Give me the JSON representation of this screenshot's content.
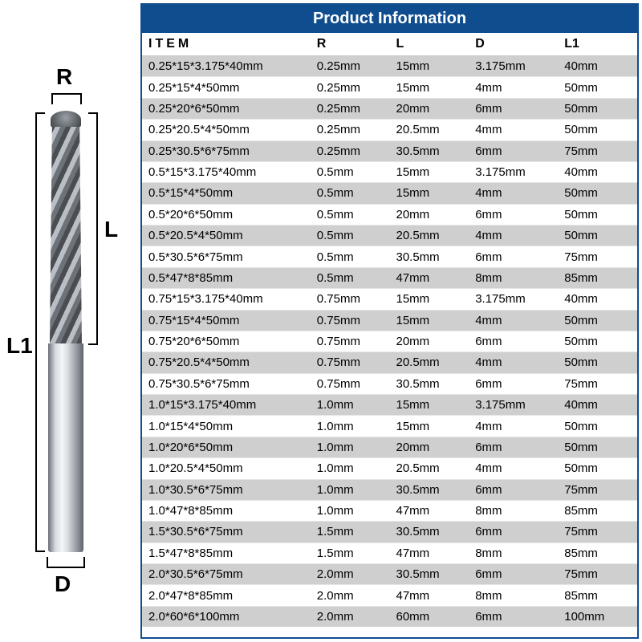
{
  "diagram": {
    "labels": {
      "R": "R",
      "L": "L",
      "L1": "L1",
      "D": "D"
    },
    "colors": {
      "label": "#000000",
      "bracket": "#000000",
      "shank_gradient": [
        "#6b7076",
        "#d6dadf",
        "#f4f6f8",
        "#dadee2",
        "#8a8f95",
        "#5d6267"
      ],
      "flute_stripes": [
        "#4a4e52",
        "#b9bfc4",
        "#6d7379"
      ],
      "tip_gradient": [
        "#9aa0a6",
        "#5f6569",
        "#3a3e42"
      ]
    },
    "label_fontsize": 28
  },
  "table": {
    "title": "Product Information",
    "title_bg": "#0f4d8f",
    "title_color": "#ffffff",
    "border_color": "#0f4d8f",
    "row_odd_bg": "#cfcfcf",
    "row_even_bg": "#ffffff",
    "font_size": 15,
    "columns": [
      {
        "key": "item",
        "label": "ITEM",
        "width_pct": 34
      },
      {
        "key": "r",
        "label": "R",
        "width_pct": 16
      },
      {
        "key": "l",
        "label": "L",
        "width_pct": 16
      },
      {
        "key": "d",
        "label": "D",
        "width_pct": 18
      },
      {
        "key": "l1",
        "label": "L1",
        "width_pct": 16
      }
    ],
    "rows": [
      {
        "item": "0.25*15*3.175*40mm",
        "r": "0.25mm",
        "l": "15mm",
        "d": "3.175mm",
        "l1": "40mm"
      },
      {
        "item": "0.25*15*4*50mm",
        "r": "0.25mm",
        "l": "15mm",
        "d": "4mm",
        "l1": "50mm"
      },
      {
        "item": "0.25*20*6*50mm",
        "r": "0.25mm",
        "l": "20mm",
        "d": "6mm",
        "l1": "50mm"
      },
      {
        "item": "0.25*20.5*4*50mm",
        "r": "0.25mm",
        "l": "20.5mm",
        "d": "4mm",
        "l1": "50mm"
      },
      {
        "item": "0.25*30.5*6*75mm",
        "r": "0.25mm",
        "l": "30.5mm",
        "d": "6mm",
        "l1": "75mm"
      },
      {
        "item": "0.5*15*3.175*40mm",
        "r": "0.5mm",
        "l": "15mm",
        "d": "3.175mm",
        "l1": "40mm"
      },
      {
        "item": "0.5*15*4*50mm",
        "r": "0.5mm",
        "l": "15mm",
        "d": "4mm",
        "l1": "50mm"
      },
      {
        "item": "0.5*20*6*50mm",
        "r": "0.5mm",
        "l": "20mm",
        "d": "6mm",
        "l1": "50mm"
      },
      {
        "item": "0.5*20.5*4*50mm",
        "r": "0.5mm",
        "l": "20.5mm",
        "d": "4mm",
        "l1": "50mm"
      },
      {
        "item": "0.5*30.5*6*75mm",
        "r": "0.5mm",
        "l": "30.5mm",
        "d": "6mm",
        "l1": "75mm"
      },
      {
        "item": "0.5*47*8*85mm",
        "r": "0.5mm",
        "l": "47mm",
        "d": "8mm",
        "l1": "85mm"
      },
      {
        "item": "0.75*15*3.175*40mm",
        "r": "0.75mm",
        "l": "15mm",
        "d": "3.175mm",
        "l1": "40mm"
      },
      {
        "item": "0.75*15*4*50mm",
        "r": "0.75mm",
        "l": "15mm",
        "d": "4mm",
        "l1": "50mm"
      },
      {
        "item": "0.75*20*6*50mm",
        "r": "0.75mm",
        "l": "20mm",
        "d": "6mm",
        "l1": "50mm"
      },
      {
        "item": "0.75*20.5*4*50mm",
        "r": "0.75mm",
        "l": "20.5mm",
        "d": "4mm",
        "l1": "50mm"
      },
      {
        "item": "0.75*30.5*6*75mm",
        "r": "0.75mm",
        "l": "30.5mm",
        "d": "6mm",
        "l1": "75mm"
      },
      {
        "item": "1.0*15*3.175*40mm",
        "r": "1.0mm",
        "l": "15mm",
        "d": "3.175mm",
        "l1": "40mm"
      },
      {
        "item": "1.0*15*4*50mm",
        "r": "1.0mm",
        "l": "15mm",
        "d": "4mm",
        "l1": "50mm"
      },
      {
        "item": "1.0*20*6*50mm",
        "r": "1.0mm",
        "l": "20mm",
        "d": "6mm",
        "l1": "50mm"
      },
      {
        "item": "1.0*20.5*4*50mm",
        "r": "1.0mm",
        "l": "20.5mm",
        "d": "4mm",
        "l1": "50mm"
      },
      {
        "item": "1.0*30.5*6*75mm",
        "r": "1.0mm",
        "l": "30.5mm",
        "d": "6mm",
        "l1": "75mm"
      },
      {
        "item": "1.0*47*8*85mm",
        "r": "1.0mm",
        "l": "47mm",
        "d": "8mm",
        "l1": "85mm"
      },
      {
        "item": "1.5*30.5*6*75mm",
        "r": "1.5mm",
        "l": "30.5mm",
        "d": "6mm",
        "l1": "75mm"
      },
      {
        "item": "1.5*47*8*85mm",
        "r": "1.5mm",
        "l": "47mm",
        "d": "8mm",
        "l1": "85mm"
      },
      {
        "item": "2.0*30.5*6*75mm",
        "r": "2.0mm",
        "l": "30.5mm",
        "d": "6mm",
        "l1": "75mm"
      },
      {
        "item": "2.0*47*8*85mm",
        "r": "2.0mm",
        "l": "47mm",
        "d": "8mm",
        "l1": "85mm"
      },
      {
        "item": "2.0*60*6*100mm",
        "r": "2.0mm",
        "l": "60mm",
        "d": "6mm",
        "l1": "100mm"
      }
    ]
  }
}
